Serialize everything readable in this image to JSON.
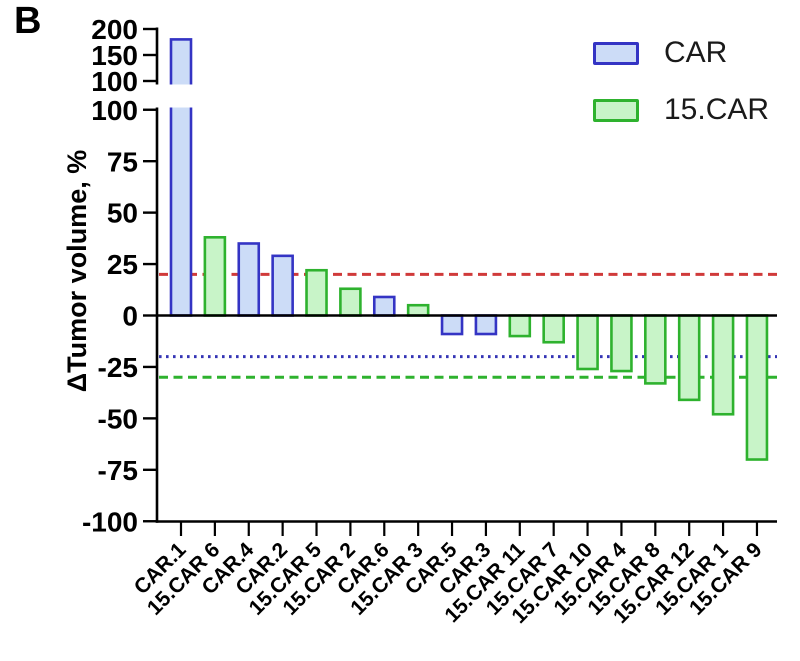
{
  "panel_label": "B",
  "legend": {
    "items": [
      {
        "label": "CAR",
        "group": "CAR"
      },
      {
        "label": "15.CAR",
        "group": "15.CAR"
      }
    ]
  },
  "chart_data": {
    "type": "bar",
    "title": "",
    "xlabel": "",
    "ylabel": "ΔTumor volume, %",
    "grid": false,
    "legend_position": "top-right",
    "broken_y_axis": {
      "top_segment": {
        "range": [
          100,
          200
        ],
        "ticks": [
          200,
          150,
          100
        ]
      },
      "main_segment": {
        "range": [
          -100,
          100
        ],
        "ticks": [
          100,
          75,
          50,
          25,
          0,
          -25,
          -50,
          -75,
          -100
        ]
      }
    },
    "bars": [
      {
        "label": "CAR.1",
        "group": "CAR",
        "value": 180
      },
      {
        "label": "15.CAR 6",
        "group": "15.CAR",
        "value": 38
      },
      {
        "label": "CAR.4",
        "group": "CAR",
        "value": 35
      },
      {
        "label": "CAR.2",
        "group": "CAR",
        "value": 29
      },
      {
        "label": "15.CAR 5",
        "group": "15.CAR",
        "value": 22
      },
      {
        "label": "15.CAR 2",
        "group": "15.CAR",
        "value": 13
      },
      {
        "label": "CAR.6",
        "group": "CAR",
        "value": 9
      },
      {
        "label": "15.CAR 3",
        "group": "15.CAR",
        "value": 5
      },
      {
        "label": "CAR.5",
        "group": "CAR",
        "value": -9
      },
      {
        "label": "CAR.3",
        "group": "CAR",
        "value": -9
      },
      {
        "label": "15.CAR 11",
        "group": "15.CAR",
        "value": -10
      },
      {
        "label": "15.CAR 7",
        "group": "15.CAR",
        "value": -13
      },
      {
        "label": "15.CAR 10",
        "group": "15.CAR",
        "value": -26
      },
      {
        "label": "15.CAR 4",
        "group": "15.CAR",
        "value": -27
      },
      {
        "label": "15.CAR 8",
        "group": "15.CAR",
        "value": -33
      },
      {
        "label": "15.CAR 12",
        "group": "15.CAR",
        "value": -41
      },
      {
        "label": "15.CAR 1",
        "group": "15.CAR",
        "value": -48
      },
      {
        "label": "15.CAR 9",
        "group": "15.CAR",
        "value": -70
      }
    ],
    "reference_lines": [
      {
        "name": "red-dashed-line",
        "value": 20,
        "style": "dashed",
        "color": "#d03a3a"
      },
      {
        "name": "blue-dotted-line",
        "value": -20,
        "style": "dotted",
        "color": "#3535b5"
      },
      {
        "name": "green-dashed-line",
        "value": -30,
        "style": "dashed",
        "color": "#2eb22e"
      }
    ],
    "colors": {
      "CAR": {
        "fill": "#ccdcf7",
        "stroke": "#3434c4"
      },
      "15.CAR": {
        "fill": "#c8f4c8",
        "stroke": "#2eb22e"
      }
    }
  }
}
